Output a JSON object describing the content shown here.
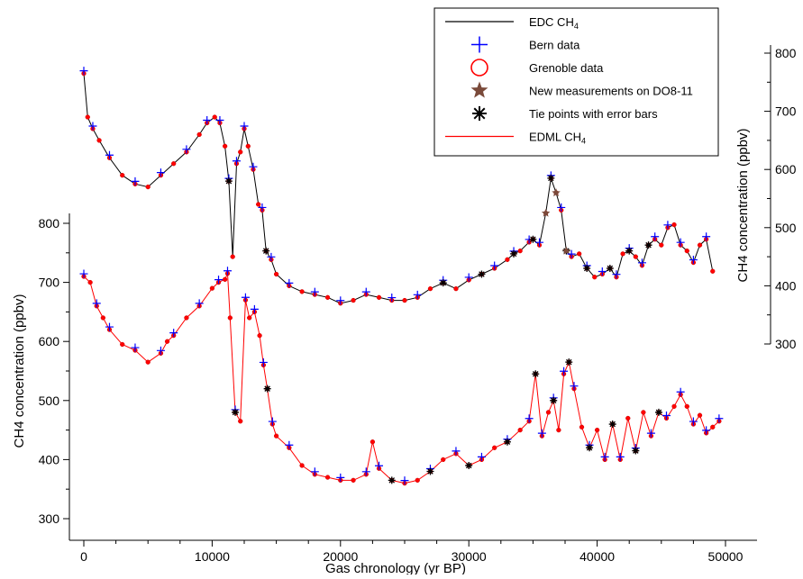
{
  "chart_data": {
    "type": "line",
    "title": "",
    "xlabel": "Gas chronology (yr BP)",
    "xlim": [
      0,
      50000
    ],
    "x_ticks": [
      0,
      10000,
      20000,
      30000,
      40000,
      50000
    ],
    "grid": false,
    "legend_position": "top-right",
    "axes": {
      "left": {
        "label": "CH4 concentration (ppbv)",
        "ylim": [
          300,
          800
        ],
        "ticks": [
          300,
          400,
          500,
          600,
          700,
          800
        ]
      },
      "right": {
        "label": "CH4 concentration (ppbv)",
        "ylim": [
          300,
          800
        ],
        "ticks": [
          300,
          400,
          500,
          600,
          700,
          800
        ]
      }
    },
    "legend": [
      {
        "key": "edc",
        "base": "EDC CH",
        "sub": "4",
        "symbol": "line",
        "color": "#000000"
      },
      {
        "key": "bern",
        "label": "Bern data",
        "symbol": "plus",
        "color": "#0000ff"
      },
      {
        "key": "grenoble",
        "label": "Grenoble data",
        "symbol": "circle",
        "color": "#ff0000"
      },
      {
        "key": "new",
        "label": "New measurements on DO8-11",
        "symbol": "star",
        "color": "#7a4a3a"
      },
      {
        "key": "tie",
        "label": "Tie points with error bars",
        "symbol": "asterisk",
        "color": "#000000"
      },
      {
        "key": "edml",
        "base": "EDML CH",
        "sub": "4",
        "symbol": "line",
        "color": "#ff0000"
      }
    ],
    "series": [
      {
        "key": "edc",
        "axis": "right",
        "color": "#000000",
        "x": [
          0,
          300,
          700,
          1200,
          2000,
          3000,
          4000,
          5000,
          6000,
          7000,
          8000,
          9000,
          9600,
          10200,
          10600,
          11000,
          11300,
          11600,
          11900,
          12200,
          12500,
          12800,
          13200,
          13600,
          13900,
          14200,
          14600,
          15000,
          16000,
          17000,
          18000,
          19000,
          20000,
          21000,
          22000,
          23000,
          24000,
          25000,
          26000,
          27000,
          28000,
          29000,
          30000,
          31000,
          32000,
          33000,
          33500,
          34000,
          34700,
          35000,
          35500,
          36000,
          36400,
          36800,
          37200,
          37600,
          38000,
          38600,
          39200,
          39800,
          40400,
          41000,
          41500,
          42000,
          42500,
          43000,
          43500,
          44000,
          44500,
          45000,
          45500,
          46000,
          46500,
          47000,
          47500,
          48000,
          48500,
          49000
        ],
        "y": [
          765,
          690,
          670,
          650,
          620,
          590,
          575,
          570,
          590,
          610,
          630,
          660,
          680,
          690,
          680,
          640,
          580,
          450,
          610,
          630,
          670,
          640,
          600,
          540,
          530,
          460,
          445,
          420,
          400,
          390,
          385,
          380,
          370,
          375,
          385,
          380,
          375,
          375,
          380,
          395,
          405,
          395,
          410,
          420,
          430,
          445,
          455,
          460,
          475,
          480,
          470,
          525,
          585,
          560,
          530,
          460,
          450,
          455,
          430,
          415,
          420,
          430,
          415,
          455,
          460,
          450,
          435,
          470,
          480,
          470,
          500,
          505,
          470,
          460,
          440,
          470,
          480,
          425
        ]
      },
      {
        "key": "edml",
        "axis": "left",
        "color": "#ff0000",
        "x": [
          0,
          500,
          1000,
          1500,
          2000,
          3000,
          4000,
          5000,
          6000,
          6500,
          7000,
          8000,
          9000,
          10000,
          10500,
          11000,
          11200,
          11400,
          11800,
          12200,
          12600,
          12900,
          13300,
          13700,
          14000,
          14300,
          14700,
          15000,
          16000,
          17000,
          18000,
          19000,
          20000,
          21000,
          22000,
          22500,
          23000,
          24000,
          25000,
          26000,
          27000,
          28000,
          29000,
          30000,
          31000,
          32000,
          33000,
          34000,
          34700,
          35200,
          35700,
          36200,
          36600,
          37000,
          37400,
          37800,
          38200,
          38800,
          39400,
          40000,
          40600,
          41200,
          41800,
          42400,
          43000,
          43600,
          44200,
          44800,
          45400,
          46000,
          46500,
          47000,
          47500,
          48000,
          48500,
          49000,
          49500
        ],
        "y": [
          710,
          700,
          660,
          640,
          620,
          595,
          585,
          565,
          580,
          600,
          610,
          640,
          660,
          690,
          700,
          705,
          715,
          640,
          480,
          465,
          670,
          640,
          650,
          610,
          560,
          520,
          460,
          440,
          420,
          390,
          375,
          370,
          365,
          365,
          375,
          430,
          385,
          365,
          360,
          365,
          380,
          400,
          410,
          390,
          400,
          420,
          430,
          450,
          465,
          545,
          440,
          480,
          500,
          450,
          545,
          565,
          520,
          455,
          420,
          450,
          400,
          460,
          400,
          470,
          415,
          480,
          440,
          480,
          470,
          490,
          510,
          490,
          460,
          475,
          445,
          455,
          465
        ]
      }
    ]
  }
}
